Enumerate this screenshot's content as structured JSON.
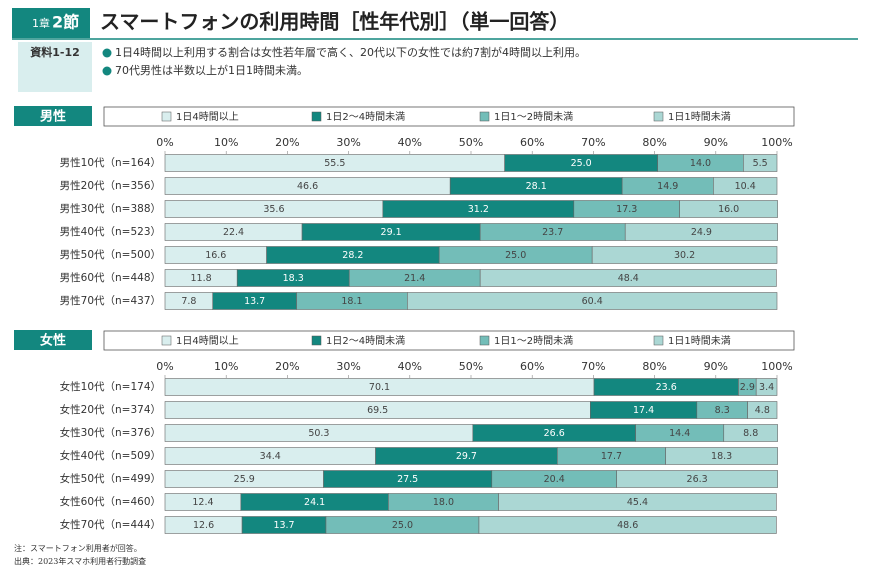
{
  "header": {
    "chapter": "1章",
    "section": "2節",
    "title": "スマートフォンの利用時間［性年代別］（単一回答）",
    "figure_label": "資料1-12",
    "bullets": [
      "1日4時間以上利用する割合は女性若年層で高く、20代以下の女性では約7割が4時間以上利用。",
      "70代男性は半数以上が1日1時間未満。"
    ]
  },
  "chart_data": [
    {
      "type": "bar",
      "orientation": "horizontal",
      "stacked": true,
      "title": "男性",
      "legend": "top",
      "categories": [
        "男性10代（n=164）",
        "男性20代（n=356）",
        "男性30代（n=388）",
        "男性40代（n=523）",
        "男性50代（n=500）",
        "男性60代（n=448）",
        "男性70代（n=437）"
      ],
      "xlim": [
        0,
        100
      ],
      "xticks": [
        {
          "value": 0,
          "label": "0%"
        },
        {
          "value": 10,
          "label": "10%"
        },
        {
          "value": 20,
          "label": "20%"
        },
        {
          "value": 30,
          "label": "30%"
        },
        {
          "value": 40,
          "label": "40%"
        },
        {
          "value": 50,
          "label": "50%"
        },
        {
          "value": 60,
          "label": "60%"
        },
        {
          "value": 70,
          "label": "70%"
        },
        {
          "value": 80,
          "label": "80%"
        },
        {
          "value": 90,
          "label": "90%"
        },
        {
          "value": 100,
          "label": "100%"
        }
      ],
      "series": [
        {
          "name": "1日4時間以上",
          "color": "#d9eeee",
          "values": [
            55.5,
            46.6,
            35.6,
            22.4,
            16.6,
            11.8,
            7.8
          ],
          "value_labels": [
            "55.5",
            "46.6",
            "35.6",
            "22.4",
            "16.6",
            "11.8",
            "7.8"
          ]
        },
        {
          "name": "1日2～4時間未満",
          "color": "#13877f",
          "values": [
            25.0,
            28.1,
            31.2,
            29.1,
            28.2,
            18.3,
            13.7
          ],
          "value_labels": [
            "25.0",
            "28.1",
            "31.2",
            "29.1",
            "28.2",
            "18.3",
            "13.7"
          ]
        },
        {
          "name": "1日1～2時間未満",
          "color": "#73bdb8",
          "values": [
            14.0,
            14.9,
            17.3,
            23.7,
            25.0,
            21.4,
            18.1
          ],
          "value_labels": [
            "14.0",
            "14.9",
            "17.3",
            "23.7",
            "25.0",
            "21.4",
            "18.1"
          ]
        },
        {
          "name": "1日1時間未満",
          "color": "#abd7d4",
          "values": [
            5.5,
            10.4,
            16.0,
            24.9,
            30.2,
            48.4,
            60.4
          ],
          "value_labels": [
            "5.5",
            "10.4",
            "16.0",
            "24.9",
            "30.2",
            "48.4",
            "60.4"
          ]
        }
      ]
    },
    {
      "type": "bar",
      "orientation": "horizontal",
      "stacked": true,
      "title": "女性",
      "legend": "top",
      "categories": [
        "女性10代（n=174）",
        "女性20代（n=374）",
        "女性30代（n=376）",
        "女性40代（n=509）",
        "女性50代（n=499）",
        "女性60代（n=460）",
        "女性70代（n=444）"
      ],
      "xlim": [
        0,
        100
      ],
      "xticks": [
        {
          "value": 0,
          "label": "0%"
        },
        {
          "value": 10,
          "label": "10%"
        },
        {
          "value": 20,
          "label": "20%"
        },
        {
          "value": 30,
          "label": "30%"
        },
        {
          "value": 40,
          "label": "40%"
        },
        {
          "value": 50,
          "label": "50%"
        },
        {
          "value": 60,
          "label": "60%"
        },
        {
          "value": 70,
          "label": "70%"
        },
        {
          "value": 80,
          "label": "80%"
        },
        {
          "value": 90,
          "label": "90%"
        },
        {
          "value": 100,
          "label": "100%"
        }
      ],
      "series": [
        {
          "name": "1日4時間以上",
          "color": "#d9eeee",
          "values": [
            70.1,
            69.5,
            50.3,
            34.4,
            25.9,
            12.4,
            12.6
          ],
          "value_labels": [
            "70.1",
            "69.5",
            "50.3",
            "34.4",
            "25.9",
            "12.4",
            "12.6"
          ]
        },
        {
          "name": "1日2～4時間未満",
          "color": "#13877f",
          "values": [
            23.6,
            17.4,
            26.6,
            29.7,
            27.5,
            24.1,
            13.7
          ],
          "value_labels": [
            "23.6",
            "17.4",
            "26.6",
            "29.7",
            "27.5",
            "24.1",
            "13.7"
          ]
        },
        {
          "name": "1日1～2時間未満",
          "color": "#73bdb8",
          "values": [
            2.9,
            8.3,
            14.4,
            17.7,
            20.4,
            18.0,
            25.0
          ],
          "value_labels": [
            "2.9",
            "8.3",
            "14.4",
            "17.7",
            "20.4",
            "18.0",
            "25.0"
          ]
        },
        {
          "name": "1日1時間未満",
          "color": "#abd7d4",
          "values": [
            3.4,
            4.8,
            8.8,
            18.3,
            26.3,
            45.4,
            48.6
          ],
          "value_labels": [
            "3.4",
            "4.8",
            "8.8",
            "18.3",
            "26.3",
            "45.4",
            "48.6"
          ]
        }
      ]
    }
  ],
  "notes": [
    "注：スマートフォン利用者が回答。",
    "出典：2023年スマホ利用者行動調査"
  ]
}
